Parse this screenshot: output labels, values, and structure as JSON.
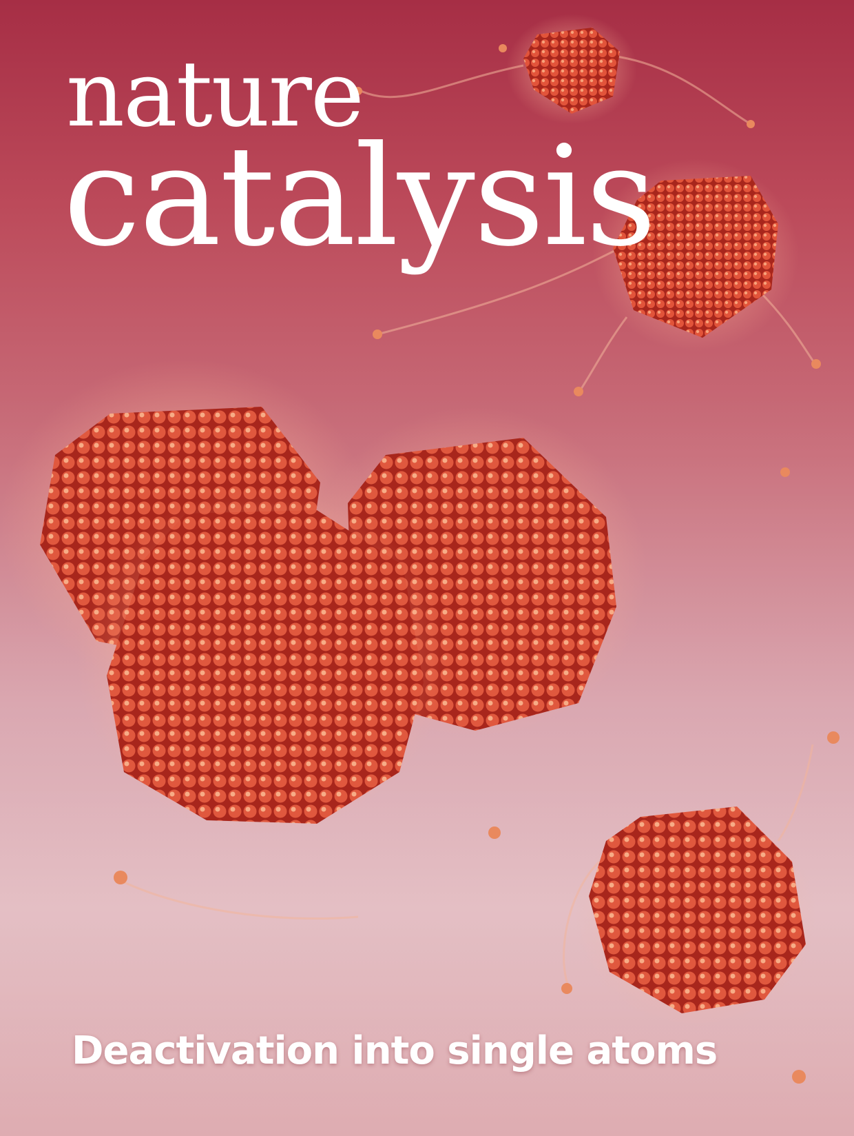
{
  "journal": {
    "title_line1": "nature",
    "title_line2": "catalysis"
  },
  "cover_line": "Deactivation into single atoms",
  "colors": {
    "background_top": "#a62e45",
    "background_bottom": "#e0b6bc",
    "particle_red": "#d9452c",
    "text": "#ffffff"
  }
}
